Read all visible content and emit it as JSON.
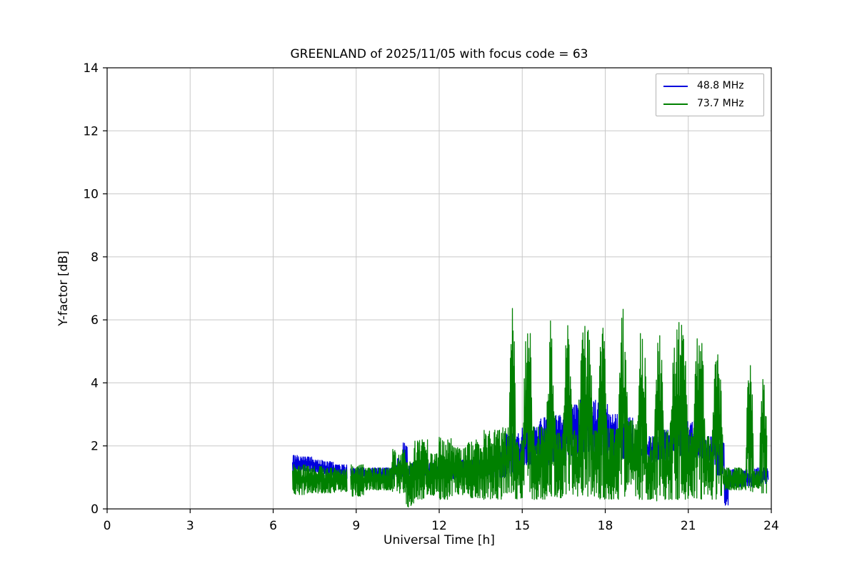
{
  "chart_data": {
    "type": "line",
    "title": "GREENLAND of 2025/11/05 with focus code = 63",
    "xlabel": "Universal Time [h]",
    "ylabel": "Y-factor [dB]",
    "xlim": [
      0,
      24
    ],
    "ylim": [
      0,
      14
    ],
    "xticks": [
      0,
      3,
      6,
      9,
      12,
      15,
      18,
      21,
      24
    ],
    "yticks": [
      0,
      2,
      4,
      6,
      8,
      10,
      12,
      14
    ],
    "grid": true,
    "grid_color": "#c8c8c8",
    "legend_position": "upper right",
    "series": [
      {
        "name": "48.8 MHz",
        "color": "#0000dd",
        "envelope_format": "[t_start_h, t_end_h, y_min_dB, y_max_dB] (null = data gap)",
        "envelope": [
          [
            6.7,
            7.0,
            1.15,
            1.7
          ],
          [
            7.0,
            7.4,
            1.2,
            1.65
          ],
          [
            7.4,
            7.8,
            1.15,
            1.55
          ],
          [
            7.8,
            8.2,
            1.05,
            1.5
          ],
          [
            8.2,
            8.68,
            0.95,
            1.4
          ],
          [
            8.68,
            8.8,
            null,
            null
          ],
          [
            8.8,
            9.4,
            1.0,
            1.3
          ],
          [
            9.4,
            10.4,
            0.95,
            1.3
          ],
          [
            10.4,
            10.7,
            1.0,
            1.6
          ],
          [
            10.7,
            10.85,
            1.2,
            2.1
          ],
          [
            10.85,
            11.6,
            1.0,
            1.45
          ],
          [
            11.6,
            12.6,
            0.95,
            1.45
          ],
          [
            12.6,
            13.6,
            1.0,
            1.55
          ],
          [
            13.6,
            14.4,
            1.0,
            1.8
          ],
          [
            14.4,
            15.0,
            1.1,
            2.4
          ],
          [
            15.0,
            15.6,
            1.4,
            2.6
          ],
          [
            15.6,
            16.1,
            1.4,
            2.9
          ],
          [
            16.1,
            16.6,
            1.5,
            3.0
          ],
          [
            16.6,
            17.1,
            1.7,
            3.3
          ],
          [
            17.1,
            17.6,
            1.8,
            3.5
          ],
          [
            17.6,
            18.1,
            1.7,
            3.45
          ],
          [
            18.1,
            18.6,
            1.5,
            3.0
          ],
          [
            18.6,
            19.0,
            1.6,
            2.9
          ],
          [
            19.0,
            19.45,
            1.7,
            1.9
          ],
          [
            19.45,
            20.0,
            1.5,
            2.3
          ],
          [
            20.0,
            20.5,
            1.5,
            2.5
          ],
          [
            20.5,
            21.0,
            1.7,
            2.9
          ],
          [
            21.0,
            21.5,
            1.6,
            2.8
          ],
          [
            21.5,
            22.0,
            1.4,
            2.3
          ],
          [
            22.0,
            22.3,
            1.0,
            2.1
          ],
          [
            22.3,
            22.45,
            0.05,
            1.3
          ],
          [
            22.45,
            23.4,
            0.7,
            1.25
          ],
          [
            23.4,
            23.9,
            0.8,
            1.3
          ]
        ]
      },
      {
        "name": "73.7 MHz",
        "color": "#008000",
        "envelope_format": "[t_start_h, t_end_h, y_min_dB, y_max_dB] (null = data gap)",
        "envelope": [
          [
            6.7,
            7.2,
            0.45,
            1.4
          ],
          [
            7.2,
            7.8,
            0.5,
            1.35
          ],
          [
            7.8,
            8.3,
            0.5,
            1.3
          ],
          [
            8.3,
            8.68,
            0.55,
            1.25
          ],
          [
            8.68,
            8.8,
            null,
            null
          ],
          [
            8.8,
            9.3,
            0.4,
            1.4
          ],
          [
            9.3,
            10.3,
            0.6,
            1.3
          ],
          [
            10.3,
            10.8,
            0.5,
            1.9
          ],
          [
            10.8,
            11.1,
            0.05,
            1.5
          ],
          [
            11.1,
            11.6,
            0.3,
            2.2
          ],
          [
            11.6,
            12.0,
            0.4,
            1.75
          ],
          [
            12.0,
            12.5,
            0.3,
            2.3
          ],
          [
            12.5,
            13.0,
            0.45,
            1.95
          ],
          [
            13.0,
            13.6,
            0.35,
            2.2
          ],
          [
            13.6,
            14.3,
            0.3,
            2.5
          ],
          [
            14.3,
            14.55,
            0.5,
            2.6
          ],
          [
            14.55,
            14.75,
            0.5,
            6.45
          ],
          [
            14.75,
            15.05,
            0.3,
            2.2
          ],
          [
            15.05,
            15.35,
            0.4,
            6.6
          ],
          [
            15.35,
            15.9,
            0.3,
            2.6
          ],
          [
            15.9,
            16.2,
            0.4,
            6.1
          ],
          [
            16.2,
            16.5,
            0.35,
            2.4
          ],
          [
            16.5,
            16.8,
            0.4,
            5.9
          ],
          [
            16.8,
            17.05,
            0.4,
            2.5
          ],
          [
            17.05,
            17.55,
            0.4,
            6.05
          ],
          [
            17.55,
            17.75,
            0.4,
            2.5
          ],
          [
            17.75,
            18.05,
            0.3,
            5.8
          ],
          [
            18.05,
            18.5,
            0.3,
            2.55
          ],
          [
            18.5,
            18.8,
            0.4,
            6.45
          ],
          [
            18.8,
            19.15,
            0.4,
            2.8
          ],
          [
            19.15,
            19.5,
            0.3,
            5.9
          ],
          [
            19.5,
            19.8,
            0.3,
            2.3
          ],
          [
            19.8,
            20.1,
            0.2,
            5.6
          ],
          [
            20.1,
            20.35,
            0.3,
            2.5
          ],
          [
            20.35,
            21.0,
            0.3,
            6.0
          ],
          [
            21.0,
            21.2,
            0.4,
            2.6
          ],
          [
            21.2,
            21.6,
            0.3,
            5.8
          ],
          [
            21.6,
            21.85,
            0.4,
            2.3
          ],
          [
            21.85,
            22.25,
            0.3,
            5.0
          ],
          [
            22.25,
            23.1,
            0.6,
            1.3
          ],
          [
            23.1,
            23.35,
            0.5,
            4.6
          ],
          [
            23.35,
            23.6,
            0.6,
            1.2
          ],
          [
            23.6,
            23.85,
            0.5,
            4.2
          ]
        ]
      }
    ]
  }
}
